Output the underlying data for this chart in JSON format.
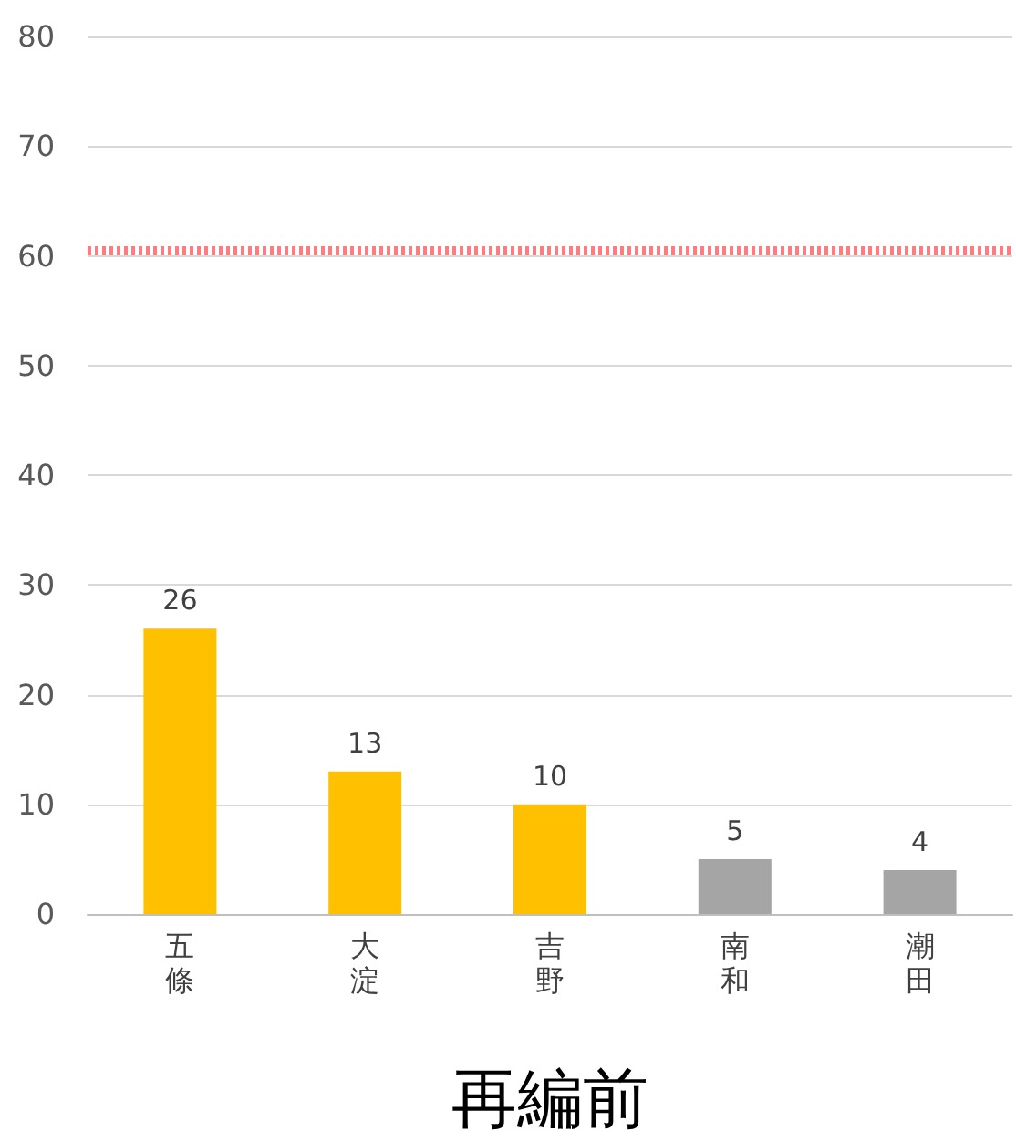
{
  "chart_data": {
    "type": "bar",
    "xlabel": "再編前",
    "categories": [
      "五條",
      "大淀",
      "吉野",
      "南和",
      "潮田"
    ],
    "values": [
      26,
      13,
      10,
      5,
      4
    ],
    "colors": [
      "#ffc000",
      "#ffc000",
      "#ffc000",
      "#a5a5a5",
      "#a5a5a5"
    ],
    "ylim": [
      0,
      80
    ],
    "yticks": [
      0,
      10,
      20,
      30,
      40,
      50,
      60,
      70,
      80
    ],
    "grid": "y",
    "data_labels": true,
    "ref_lines": [
      {
        "axis": "y",
        "value": 60.5,
        "color": "#ff7c80",
        "line_style": "dotted"
      }
    ]
  }
}
